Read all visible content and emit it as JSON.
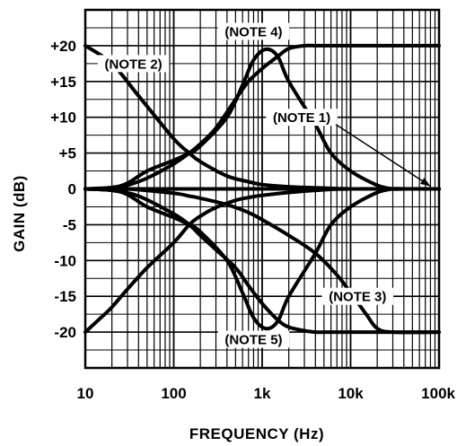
{
  "chart_data": {
    "type": "line",
    "title": "",
    "xlabel": "FREQUENCY (Hz)",
    "ylabel": "GAIN (dB)",
    "xscale": "log",
    "xlim": [
      10,
      100000
    ],
    "ylim": [
      -25,
      25
    ],
    "x_ticks": [
      10,
      100,
      1000,
      10000,
      100000
    ],
    "x_tick_labels": [
      "10",
      "100",
      "1k",
      "10k",
      "100k"
    ],
    "y_ticks": [
      20,
      15,
      10,
      5,
      0,
      -5,
      -10,
      -15,
      -20
    ],
    "y_tick_labels": [
      "+20",
      "+15",
      "+10",
      "+5",
      "0",
      "-5",
      "-10",
      "-15",
      "-20"
    ],
    "grid": true,
    "legend": "none",
    "annotations": [
      {
        "text": "(NOTE 1)",
        "x": 2800,
        "y": 10
      },
      {
        "text": "(NOTE 2)",
        "x": 35,
        "y": 17.5
      },
      {
        "text": "(NOTE 3)",
        "x": 12000,
        "y": -15
      },
      {
        "text": "(NOTE 4)",
        "x": 800,
        "y": 22
      },
      {
        "text": "(NOTE 5)",
        "x": 800,
        "y": -21
      }
    ],
    "series": [
      {
        "note": "NOTE 1",
        "x": [
          10,
          100,
          1000,
          10000,
          100000
        ],
        "y": [
          0,
          0,
          0,
          0,
          0
        ]
      },
      {
        "note": "NOTE 2",
        "x": [
          10,
          20,
          40,
          100,
          150,
          200,
          400,
          700,
          1000,
          2000,
          4000,
          7000,
          10000,
          20000,
          30000,
          100000
        ],
        "y": [
          20,
          17.5,
          13,
          7,
          5,
          3.8,
          1.8,
          1,
          0.6,
          0.3,
          0.15,
          0.05,
          0,
          0,
          0,
          0
        ]
      },
      {
        "note": "NOTE 3",
        "x": [
          10,
          20,
          30,
          100,
          150,
          200,
          400,
          700,
          1000,
          2000,
          4000,
          7000,
          10000,
          15000,
          20000,
          30000,
          100000
        ],
        "y": [
          0,
          0,
          0,
          -0.6,
          -1,
          -1.3,
          -2.2,
          -3.3,
          -4.3,
          -6.5,
          -9,
          -12,
          -14.5,
          -17.5,
          -19.5,
          -20,
          -20
        ]
      },
      {
        "note": "NOTE 4",
        "x": [
          10,
          20,
          30,
          50,
          100,
          150,
          200,
          400,
          600,
          800,
          1100,
          1500,
          2000,
          4000,
          6000,
          10000,
          20000,
          30000,
          40000,
          100000
        ],
        "y": [
          0,
          0.2,
          0.8,
          2.5,
          4,
          5,
          6,
          10,
          14.5,
          18,
          19.5,
          18.5,
          15,
          9,
          5,
          2.5,
          0.5,
          0,
          0,
          0
        ]
      },
      {
        "note": "NOTE 5",
        "x": [
          10,
          20,
          30,
          50,
          100,
          150,
          200,
          400,
          600,
          800,
          1100,
          1500,
          2000,
          4000,
          6000,
          10000,
          20000,
          30000,
          40000,
          100000
        ],
        "y": [
          0,
          -0.2,
          -0.8,
          -2.5,
          -4,
          -5,
          -6,
          -10,
          -14.5,
          -18,
          -19.5,
          -18.5,
          -15,
          -9,
          -5,
          -2.5,
          -0.5,
          0,
          0,
          0
        ]
      },
      {
        "note": "",
        "x": [
          10,
          20,
          30,
          50,
          100,
          150,
          200,
          300,
          500,
          700,
          1000,
          1500,
          2000,
          3000,
          4000,
          6000,
          10000,
          15000,
          20000,
          30000,
          100000
        ],
        "y": [
          0,
          0,
          0.5,
          1.5,
          3.5,
          5,
          6.3,
          8.5,
          12.5,
          15,
          16.8,
          18.5,
          19.6,
          20,
          20,
          20,
          20,
          20,
          20,
          20,
          20
        ]
      },
      {
        "note": "",
        "x": [
          10,
          15,
          20,
          30,
          50,
          100,
          150,
          200,
          300,
          500,
          700,
          1000,
          2000,
          4000,
          10000,
          100000
        ],
        "y": [
          -20,
          -18,
          -16.5,
          -14,
          -11,
          -7.5,
          -5,
          -3.8,
          -2.6,
          -1.6,
          -1.2,
          -0.9,
          -0.5,
          -0.2,
          0,
          0
        ]
      },
      {
        "note": "",
        "x": [
          10,
          20,
          40,
          100,
          150,
          200,
          300,
          500,
          700,
          1000,
          1500,
          2000,
          3000,
          4000,
          6000,
          10000,
          20000,
          30000,
          100000
        ],
        "y": [
          0,
          -0.2,
          -1,
          -3.5,
          -5,
          -6.5,
          -8.5,
          -11,
          -13.5,
          -16,
          -18.3,
          -19.3,
          -19.8,
          -20,
          -20,
          -20,
          -20,
          -20,
          -20
        ]
      }
    ]
  }
}
